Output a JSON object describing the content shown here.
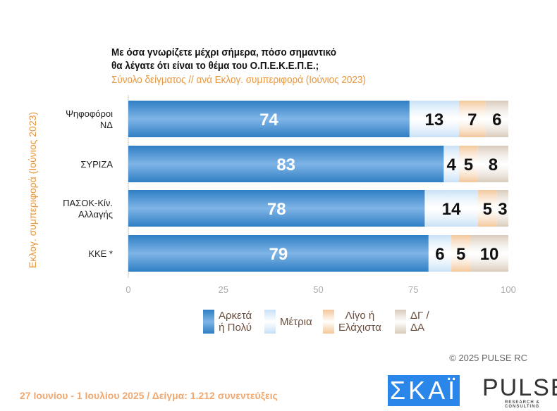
{
  "chart_data": {
    "type": "bar",
    "orientation": "horizontal",
    "stacked": true,
    "title": [
      "Με όσα γνωρίζετε μέχρι σήμερα, πόσο σημαντικό",
      "θα λέγατε ότι είναι το θέμα του  Ο.Π.Ε.Κ.Ε.Π.Ε.;"
    ],
    "subtitle": "Σύνολο δείγματος // ανά Εκλογ. συμπεριφορά (Ιούνιος 2023)",
    "ylabel": "Εκλογ. συμπεριφορά (Ιούνιος 2023)",
    "categories": [
      [
        "Ψηφοφόροι",
        "ΝΔ"
      ],
      [
        "ΣΥΡΙΖΑ"
      ],
      [
        "ΠΑΣΟΚ-Κίν.",
        "Αλλαγής"
      ],
      [
        "ΚΚΕ *"
      ]
    ],
    "series": [
      {
        "name": "Αρκετά ή Πολύ",
        "legend": [
          "Αρκετά",
          "ή Πολύ"
        ],
        "color": "#2f7fc4",
        "values": [
          74,
          83,
          78,
          79
        ]
      },
      {
        "name": "Μέτρια",
        "legend": [
          "Μέτρια"
        ],
        "color": "#c8e1f7",
        "values": [
          13,
          4,
          14,
          6
        ]
      },
      {
        "name": "Λίγο ή Ελάχιστα",
        "legend": [
          "Λίγο ή",
          "Ελάχιστα"
        ],
        "color": "#f3c79a",
        "values": [
          7,
          5,
          5,
          5
        ]
      },
      {
        "name": "ΔΓ / ΔΑ",
        "legend": [
          "ΔΓ /",
          "ΔΑ"
        ],
        "color": "#d9cbbb",
        "values": [
          6,
          8,
          3,
          10
        ]
      }
    ],
    "xlim": [
      0,
      100
    ],
    "xticks": [
      "0",
      "25",
      "50",
      "75",
      "100"
    ],
    "legend_position": "bottom",
    "grid": false
  },
  "copyright": "©  2025  PULSE RC",
  "footer": "27 Ιουνίου - 1 Ιουλίου 2025  /  Δείγμα:  1.212 συνεντεύξεις",
  "logos": {
    "skai": "ΣΚΑΪ",
    "pulse": "PULSE",
    "pulse_sub": "RESEARCH & CONSULTING"
  }
}
